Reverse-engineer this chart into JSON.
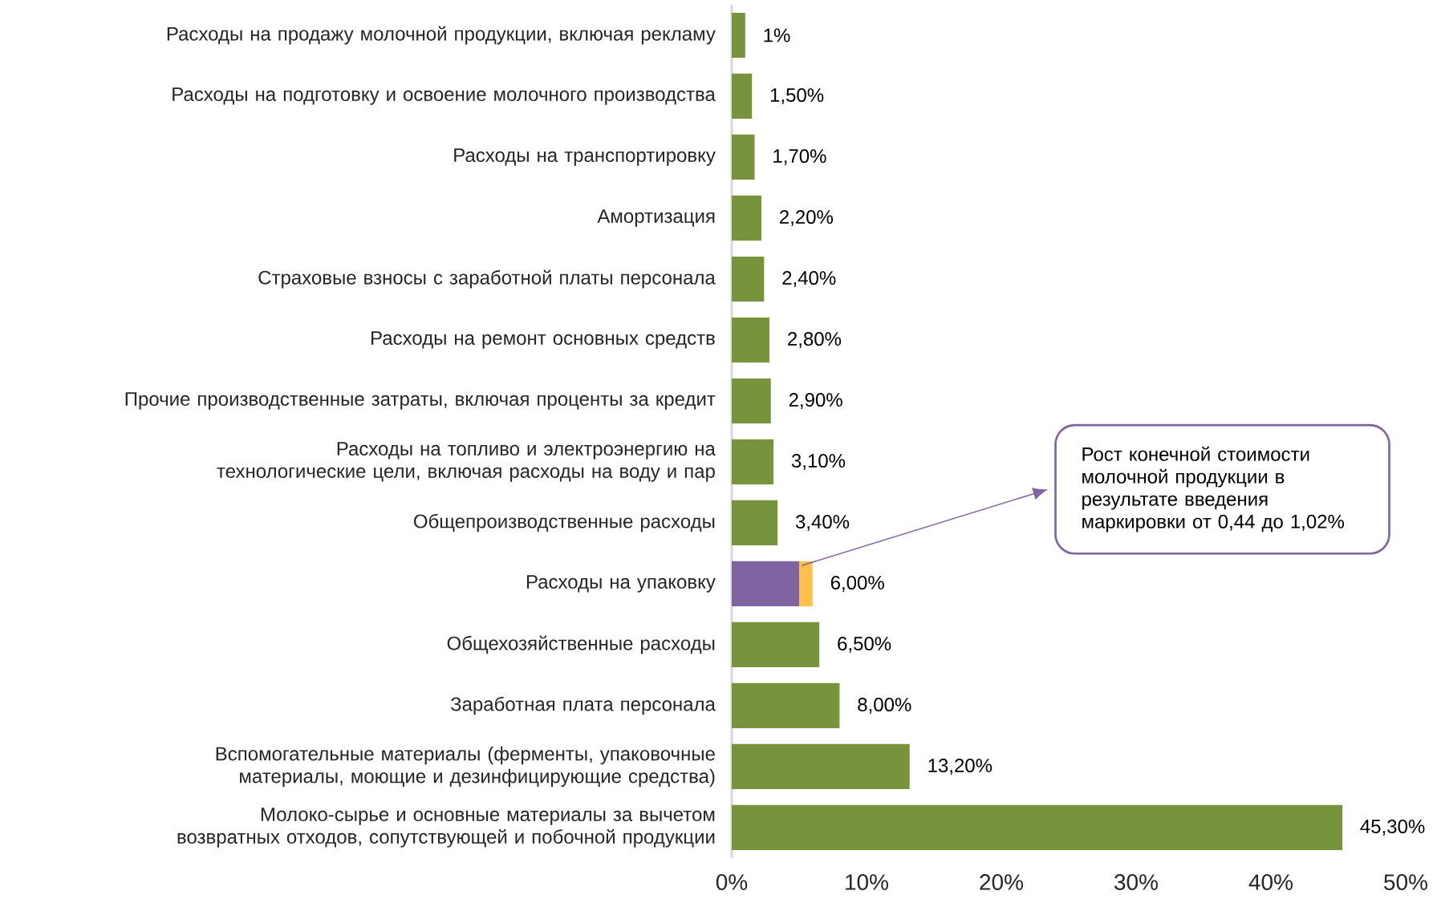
{
  "chart_data": {
    "type": "bar",
    "orientation": "horizontal",
    "stacked": true,
    "categories": [
      "Расходы на продажу молочной продукции, включая рекламу",
      "Расходы на подготовку и освоение молочного производства",
      "Расходы на транспортировку",
      "Амортизация",
      "Страховые взносы с заработной платы персонала",
      "Расходы на ремонт основных средств",
      "Прочие производственные затраты, включая проценты за кредит",
      "Расходы на топливо и электроэнергию на технологические цели, включая расходы на воду и пар",
      "Общепроизводственные расходы",
      "Расходы на упаковку",
      "Общехозяйственные расходы",
      "Заработная плата персонала",
      "Вспомогательные материалы (ферменты, упаковочные материалы, моющие и дезинфицирующие средства)",
      "Молоко-сырье и основные материалы за вычетом возвратных отходов, сопутствующей и побочной продукции"
    ],
    "series": [
      {
        "colors": [
          "#77933c",
          "#77933c",
          "#77933c",
          "#77933c",
          "#77933c",
          "#77933c",
          "#77933c",
          "#77933c",
          "#77933c",
          "#8064a2",
          "#77933c",
          "#77933c",
          "#77933c",
          "#77933c"
        ],
        "values": [
          1,
          1.5,
          1.7,
          2.2,
          2.4,
          2.8,
          2.9,
          3.1,
          3.4,
          5.0,
          6.5,
          8.0,
          13.2,
          45.3
        ]
      },
      {
        "color": "#ffc04c",
        "values": [
          null,
          null,
          null,
          null,
          null,
          null,
          null,
          null,
          null,
          1.0,
          null,
          null,
          null,
          null
        ]
      }
    ],
    "totals": [
      "1%",
      "1,50%",
      "1,70%",
      "2,20%",
      "2,40%",
      "2,80%",
      "2,90%",
      "3,10%",
      "3,40%",
      "6,00%",
      "6,50%",
      "8,00%",
      "13,20%",
      "45,30%"
    ],
    "annotations": [
      "Рост конечной стоимости молочной продукции в результате введения маркировки от 0,44 до 1,02%"
    ],
    "xlim": [
      0,
      50
    ],
    "xticks": [
      {
        "value": 0,
        "label": "0%"
      },
      {
        "value": 10,
        "label": "10%"
      },
      {
        "value": 20,
        "label": "20%"
      },
      {
        "value": 30,
        "label": "30%"
      },
      {
        "value": 40,
        "label": "40%"
      },
      {
        "value": 50,
        "label": "50%"
      }
    ]
  }
}
